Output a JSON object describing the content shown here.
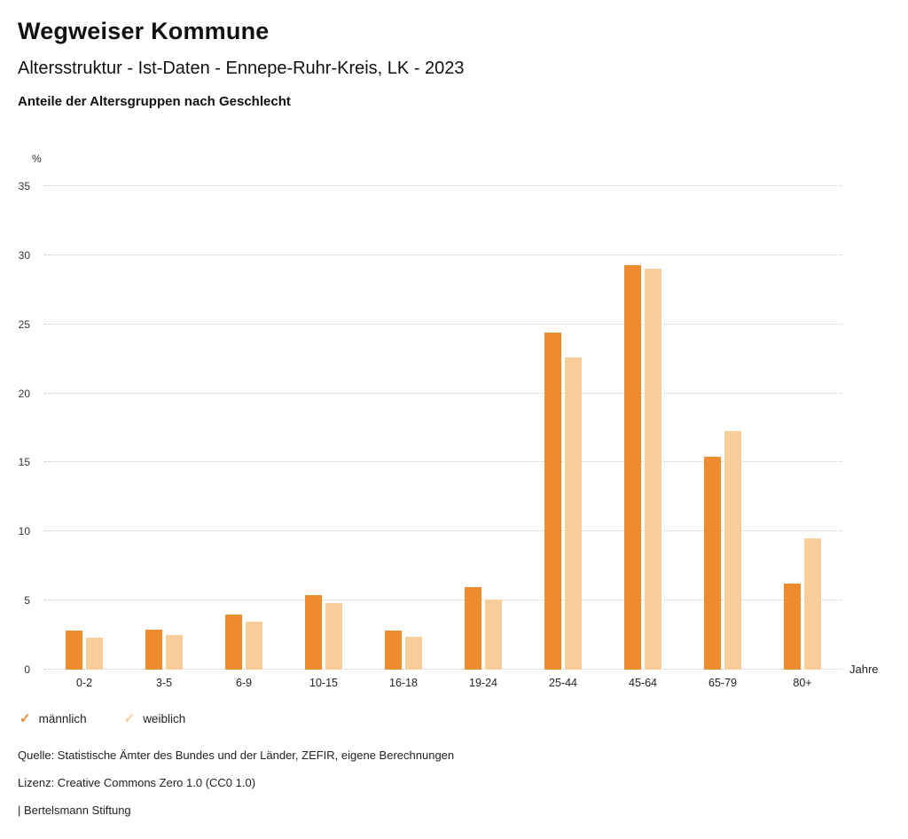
{
  "header": {
    "title": "Wegweiser Kommune",
    "subtitle": "Altersstruktur - Ist-Daten - Ennepe-Ruhr-Kreis, LK - 2023",
    "chart_title": "Anteile der Altersgruppen nach Geschlecht"
  },
  "chart_data": {
    "type": "bar",
    "categories": [
      "0-2",
      "3-5",
      "6-9",
      "10-15",
      "16-18",
      "19-24",
      "25-44",
      "45-64",
      "65-79",
      "80+"
    ],
    "series": [
      {
        "key": "maennlich",
        "name": "männlich",
        "color": "#ED8B2E",
        "values": [
          2.8,
          2.9,
          4.0,
          5.4,
          2.8,
          6.0,
          24.4,
          29.3,
          15.4,
          6.2
        ]
      },
      {
        "key": "weiblich",
        "name": "weiblich",
        "color": "#F6CD9B",
        "values": [
          2.3,
          2.5,
          3.5,
          4.8,
          2.4,
          5.1,
          22.6,
          29.0,
          17.3,
          9.5
        ]
      }
    ],
    "title": "Anteile der Altersgruppen nach Geschlecht",
    "xlabel": "Jahre",
    "ylabel": "%",
    "ylim": [
      0,
      35
    ],
    "yticks": [
      0,
      5,
      10,
      15,
      20,
      25,
      30,
      35
    ],
    "grid": true,
    "legend_position": "bottom"
  },
  "legend": {
    "items": [
      {
        "key": "maennlich",
        "label": "männlich",
        "color": "#ED8B2E"
      },
      {
        "key": "weiblich",
        "label": "weiblich",
        "color": "#F6CD9B"
      }
    ]
  },
  "footer": {
    "source": "Quelle: Statistische Ämter des Bundes und der Länder, ZEFIR, eigene Berechnungen",
    "license": "Lizenz: Creative Commons Zero 1.0 (CC0 1.0)",
    "attribution": "| Bertelsmann Stiftung"
  }
}
